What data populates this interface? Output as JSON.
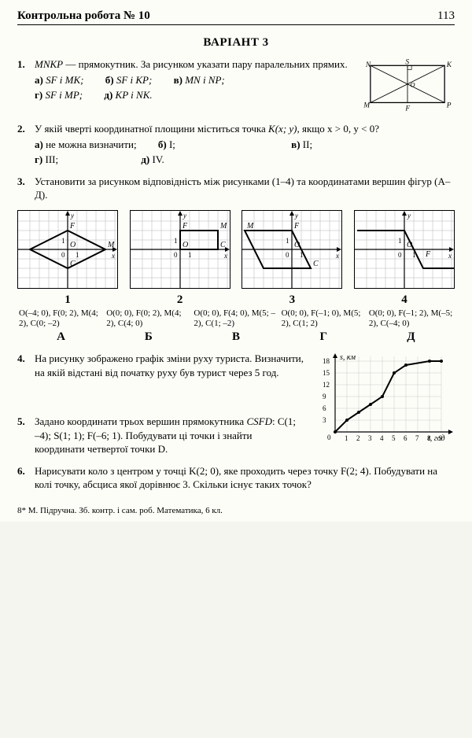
{
  "header": {
    "left": "Контрольна робота № 10",
    "page": "113"
  },
  "variant": "ВАРІАНТ 3",
  "p1": {
    "num": "1.",
    "text_a": "MNKP",
    "text_b": " — прямокутник. За рисунком указати пару паралельних прямих.",
    "opt_a": "а)",
    "val_a": "SF і MK;",
    "opt_b": "б)",
    "val_b": "SF і KP;",
    "opt_c": "в)",
    "val_c": "MN і NP;",
    "opt_d": "г)",
    "val_d": "SF і MP;",
    "opt_e": "д)",
    "val_e": "KP і NK.",
    "fig": {
      "N": "N",
      "S": "S",
      "K": "K",
      "M": "M",
      "F": "F",
      "P": "P",
      "O": "O",
      "stroke": "#000",
      "fill": "none"
    }
  },
  "p2": {
    "num": "2.",
    "text": "У якій чверті координатної площини міститься точка ",
    "kxy": "K(x; y)",
    "cond": ", якщо x > 0, y < 0?",
    "opt_a": "а)",
    "val_a": "не можна визначити;",
    "opt_b": "б)",
    "val_b": "I;",
    "opt_c": "в)",
    "val_c": "II;",
    "opt_d": "г)",
    "val_d": "III;",
    "opt_e": "д)",
    "val_e": "IV."
  },
  "p3": {
    "num": "3.",
    "text": "Установити за рисунком відповідність між рисунками (1–4) та координатами вершин фігур (А–Д).",
    "grids": {
      "grid_color": "#b5b5b5",
      "axis_color": "#000",
      "shape_color": "#000",
      "g1": {
        "shape": [
          [
            -4,
            0
          ],
          [
            0,
            2
          ],
          [
            4,
            0
          ],
          [
            0,
            -2
          ]
        ],
        "labels": {
          "O": [
            0,
            0
          ],
          "F": [
            0,
            2
          ],
          "M": [
            4,
            0
          ],
          "C": [
            0,
            -2
          ]
        }
      },
      "g2": {
        "shape": [
          [
            0,
            0
          ],
          [
            0,
            2
          ],
          [
            4,
            2
          ],
          [
            4,
            0
          ]
        ],
        "labels": {
          "O": [
            0,
            0
          ],
          "F": [
            0,
            2
          ],
          "M": [
            4,
            2
          ],
          "C": [
            4,
            0
          ]
        }
      },
      "g3": {
        "shape": [
          [
            -5,
            2
          ],
          [
            0,
            2
          ],
          [
            2,
            -2
          ],
          [
            -3,
            -2
          ]
        ],
        "labels": {
          "M": [
            -5,
            2
          ],
          "F": [
            0,
            2
          ],
          "O": [
            0,
            0
          ],
          "C": [
            2,
            -2
          ]
        }
      },
      "g4": {
        "shape": [
          [
            -5,
            2
          ],
          [
            0,
            2
          ],
          [
            2,
            -2
          ],
          [
            7,
            -2
          ]
        ],
        "open": true,
        "labels": {
          "O": [
            0,
            0
          ],
          "F": [
            2,
            -1
          ],
          "M": [
            7,
            -2
          ]
        }
      }
    },
    "nums": [
      "1",
      "2",
      "3",
      "4"
    ],
    "coords": {
      "A": "O(–4; 0), F(0; 2), M(4; 2), C(0; –2)",
      "B": "O(0; 0), F(0; 2), M(4; 2), C(4; 0)",
      "C": "O(0; 0), F(4; 0), M(5; –2), C(1; –2)",
      "D": "O(0; 0), F(–1; 0), M(5; 2), C(1; 2)",
      "E": "O(0; 0), F(–1; 2), M(–5; 2), C(–4; 0)"
    },
    "letters": [
      "А",
      "Б",
      "В",
      "Г",
      "Д"
    ]
  },
  "p4": {
    "num": "4.",
    "text": "На рисунку зображено графік зміни руху туриста. Визначити, на якій відстані від початку руху був турист через 5 год.",
    "chart": {
      "grid_color": "#c8c8c8",
      "axis_color": "#000",
      "line_color": "#000",
      "ylabel": "s, км",
      "xlabel": "t, год",
      "yticks": [
        3,
        6,
        9,
        12,
        15,
        18
      ],
      "xticks": [
        1,
        2,
        3,
        4,
        5,
        6,
        7,
        8,
        9
      ],
      "points": [
        [
          0,
          0
        ],
        [
          1,
          3
        ],
        [
          2,
          5
        ],
        [
          3,
          7
        ],
        [
          4,
          9
        ],
        [
          5,
          15
        ],
        [
          6,
          17
        ],
        [
          8,
          18
        ],
        [
          9,
          18
        ]
      ]
    }
  },
  "p5": {
    "num": "5.",
    "text_a": "Задано координати трьох вершин прямокутника ",
    "csfd": "CSFD",
    "text_b": ": C(1; –4); S(1; 1); F(–6; 1). Побудувати ці точки і знайти координати четвертої точки D."
  },
  "p6": {
    "num": "6.",
    "text": "Нарисувати коло з центром у точці K(2; 0), яке проходить через точку F(2; 4). Побудувати на колі точку, абсциса якої дорівнює 3. Скільки існує таких точок?"
  },
  "footer": "8* М. Підручна. Зб. контр. і сам. роб. Математика, 6 кл."
}
